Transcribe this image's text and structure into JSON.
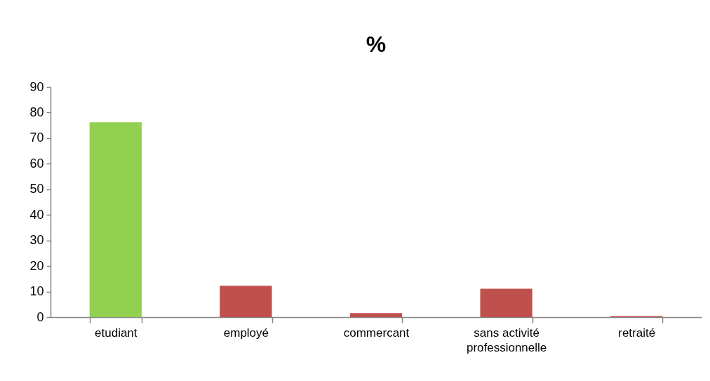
{
  "chart_data": {
    "type": "bar",
    "title": "%",
    "categories": [
      "etudiant",
      "employé",
      "commercant",
      "sans activité professionnelle",
      "retraité"
    ],
    "values": [
      76.2,
      12.3,
      1.6,
      11.1,
      0.4
    ],
    "colors": [
      "#92d050",
      "#c0504d",
      "#c0504d",
      "#c0504d",
      "#c0504d"
    ],
    "ylim": [
      0,
      90
    ],
    "yticks": [
      0,
      10,
      20,
      30,
      40,
      50,
      60,
      70,
      80,
      90
    ],
    "grid": false
  }
}
